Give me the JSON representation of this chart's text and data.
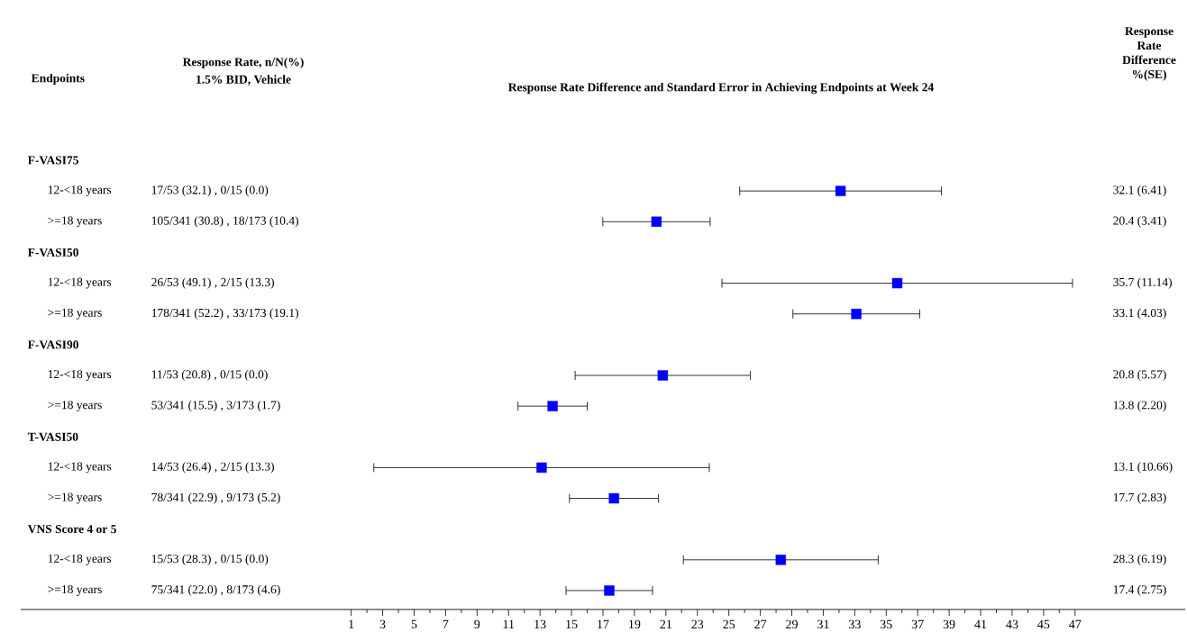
{
  "chart_data": {
    "type": "scatter",
    "orientation": "horizontal",
    "title": "Response Rate Difference and Standard Error in Achieving Endpoints at Week 24",
    "ylabel": "Endpoints",
    "categories": [
      "F-VASI75",
      "12-<18 years",
      ">=18 years",
      "F-VASI50",
      "12-<18 years",
      ">=18 years",
      "F-VASI90",
      "12-<18 years",
      ">=18 years",
      "T-VASI50",
      "12-<18 years",
      ">=18 years",
      "VNS Score 4 or 5",
      "12-<18 years",
      ">=18 years"
    ],
    "values": [
      null,
      32.1,
      20.4,
      null,
      35.7,
      33.1,
      null,
      20.8,
      13.8,
      null,
      13.1,
      17.7,
      null,
      28.3,
      17.4
    ],
    "errors": [
      null,
      6.41,
      3.41,
      null,
      11.14,
      4.03,
      null,
      5.57,
      2.2,
      null,
      10.66,
      2.83,
      null,
      6.19,
      2.75
    ],
    "color": "#0000ff",
    "marker": "square",
    "xlim": [
      -20,
      54
    ],
    "xticks": [
      1,
      3,
      5,
      7,
      9,
      11,
      13,
      15,
      17,
      19,
      21,
      23,
      25,
      27,
      29,
      31,
      33,
      35,
      37,
      39,
      41,
      43,
      45,
      47
    ],
    "annotations": [
      "Response Rate, n/N(%)",
      "1.5% BID, Vehicle",
      "Response Rate Difference %(SE)",
      "17/53 (32.1) , 0/15 (0.0)",
      "105/341 (30.8) , 18/173 (10.4)",
      "26/53 (49.1) , 2/15 (13.3)",
      "178/341 (52.2) , 33/173 (19.1)",
      "11/53 (20.8) , 0/15 (0.0)",
      "53/341 (15.5) , 3/173 (1.7)",
      "14/53 (26.4) , 2/15 (13.3)",
      "78/341 (22.9) , 9/173 (5.2)",
      "15/53 (28.3) , 0/15 (0.0)",
      "75/341 (22.0) , 8/173 (4.6)",
      "32.1 (6.41)",
      "20.4 (3.41)",
      "35.7 (11.14)",
      "33.1 (4.03)",
      "20.8 (5.57)",
      "13.8 (2.20)",
      "13.1 (10.66)",
      "17.7 (2.83)",
      "28.3 (6.19)",
      "17.4 (2.75)"
    ]
  }
}
